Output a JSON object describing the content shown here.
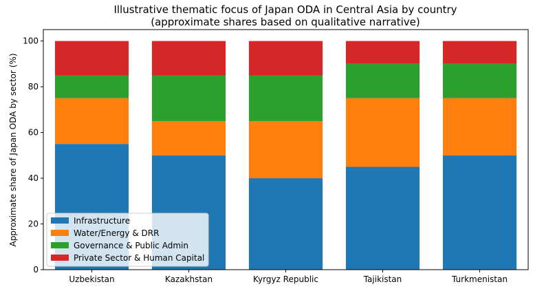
{
  "chart_data": {
    "type": "bar",
    "stacked": true,
    "title": "Illustrative thematic focus of Japan ODA in Central Asia by country",
    "subtitle": "(approximate shares based on qualitative narrative)",
    "xlabel": "",
    "ylabel": "Approximate share of Japan ODA by sector (%)",
    "ylim": [
      0,
      105
    ],
    "yticks": [
      0,
      20,
      40,
      60,
      80,
      100
    ],
    "grid": false,
    "legend_position": "lower-left",
    "categories": [
      "Uzbekistan",
      "Kazakhstan",
      "Kyrgyz Republic",
      "Tajikistan",
      "Turkmenistan"
    ],
    "series": [
      {
        "name": "Infrastructure",
        "color": "#1f77b4",
        "values": [
          55,
          50,
          40,
          45,
          50
        ]
      },
      {
        "name": "Water/Energy & DRR",
        "color": "#ff7f0e",
        "values": [
          20,
          15,
          25,
          30,
          25
        ]
      },
      {
        "name": "Governance & Public Admin",
        "color": "#2ca02c",
        "values": [
          10,
          20,
          20,
          15,
          15
        ]
      },
      {
        "name": "Private Sector & Human Capital",
        "color": "#d62728",
        "values": [
          15,
          15,
          15,
          10,
          10
        ]
      }
    ]
  }
}
